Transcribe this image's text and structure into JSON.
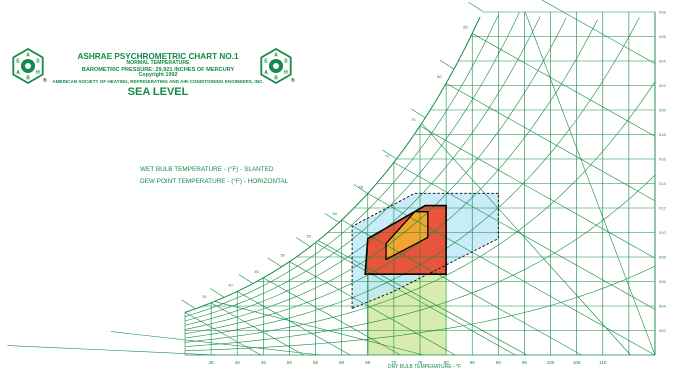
{
  "header": {
    "title": "ASHRAE PSYCHROMETRIC CHART NO.1",
    "line2": "NORMAL TEMPERATURE",
    "line3": "BAROMETRIC PRESSURE: 29.921 INCHES OF MERCURY",
    "line4": "Copyright 1992",
    "line5": "AMERICAN SOCIETY OF HEATING, REFRIGERATING AND AIR-CONDITIONING ENGINEERS, INC.",
    "line6": "SEA LEVEL"
  },
  "legend": {
    "wet_bulb": "WET BULB TEMPERATURE - (°F) - SLANTED",
    "dew_point": "DEW POINT TEMPERATURE - (°F) - HORIZONTAL"
  },
  "logo": {
    "letters": [
      "A",
      "S",
      "H",
      "R",
      "A",
      "E"
    ]
  },
  "colors": {
    "grid": "#148a47",
    "blue_zone": "#bfe9f7",
    "green_zone": "#d9ecb0",
    "red_zone": "#e8553a",
    "orange_zone": "#f2a630"
  },
  "chart_data": {
    "type": "psychrometric",
    "xlabel": "DRY BULB TEMPERATURE - °F",
    "x_ticks": [
      "35",
      "40",
      "45",
      "50",
      "55",
      "60",
      "65",
      "70",
      "75",
      "80",
      "85",
      "90",
      "95",
      "100",
      "105",
      "110"
    ],
    "x_range": [
      30,
      120
    ],
    "y_range": [
      0,
      0.028
    ],
    "y_ticks": [
      "002",
      "004",
      "006",
      "008",
      "010",
      "012",
      "014",
      "016",
      "018",
      "020",
      "022",
      "024",
      "026",
      "028"
    ],
    "dewpoint_ticks": [
      "35",
      "40",
      "45",
      "50",
      "55",
      "60",
      "65",
      "70",
      "75",
      "80",
      "85",
      "90"
    ],
    "zones": [
      {
        "name": "green",
        "points": [
          [
            65,
            0.0
          ],
          [
            80,
            0.0
          ],
          [
            80,
            0.0066
          ],
          [
            65,
            0.0066
          ]
        ]
      },
      {
        "name": "blue",
        "points": [
          [
            62,
            0.0038
          ],
          [
            62,
            0.0105
          ],
          [
            74,
            0.0132
          ],
          [
            90,
            0.0132
          ],
          [
            90,
            0.0095
          ],
          [
            70,
            0.0052
          ],
          [
            62,
            0.0038
          ]
        ]
      },
      {
        "name": "red",
        "points": [
          [
            64.5,
            0.0066
          ],
          [
            80,
            0.0066
          ],
          [
            80,
            0.0122
          ],
          [
            76,
            0.0122
          ],
          [
            65,
            0.0095
          ]
        ]
      },
      {
        "name": "orange",
        "points": [
          [
            68.5,
            0.0078
          ],
          [
            76.5,
            0.0096
          ],
          [
            76.5,
            0.0117
          ],
          [
            74,
            0.0117
          ],
          [
            68.5,
            0.0091
          ]
        ]
      }
    ]
  }
}
